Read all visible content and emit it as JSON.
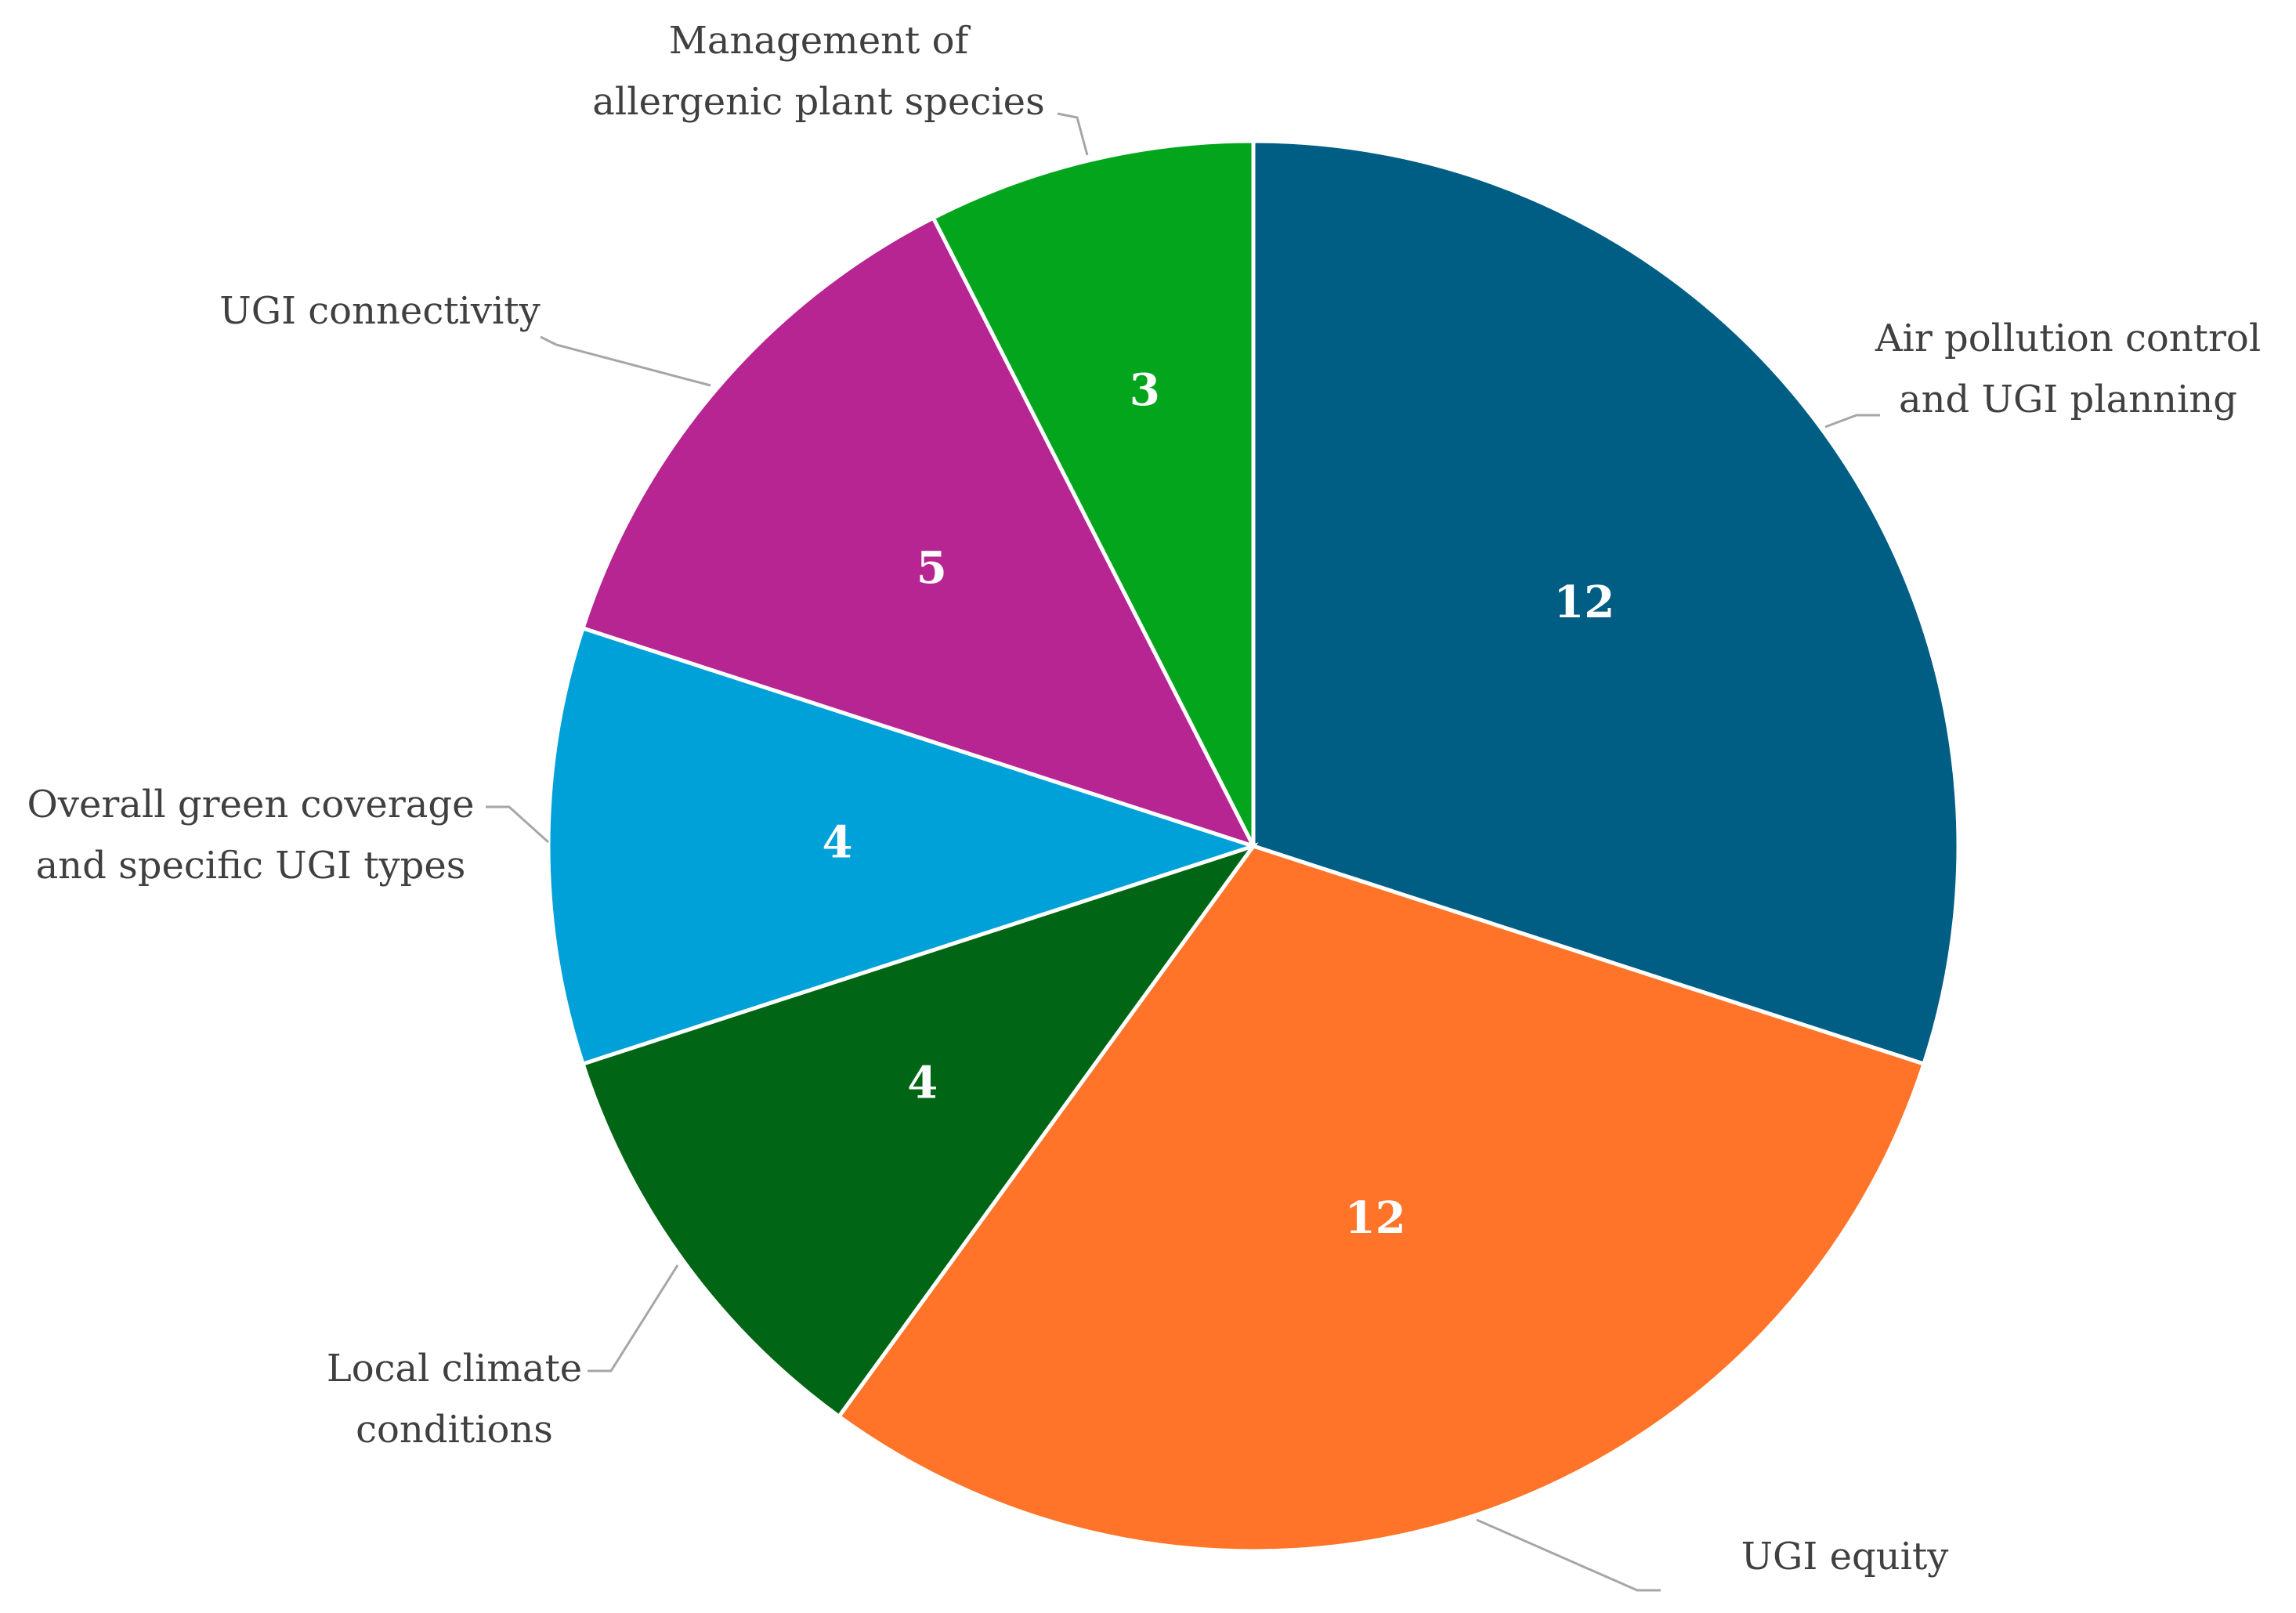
{
  "chart_data": {
    "type": "pie",
    "title": "",
    "slices": [
      {
        "label": "Air pollution control and UGI planning",
        "label_lines": [
          "Air pollution control",
          "and UGI planning"
        ],
        "value": 12,
        "color": "#005E85"
      },
      {
        "label": "UGI equity",
        "label_lines": [
          "UGI equity"
        ],
        "value": 12,
        "color": "#FF7428"
      },
      {
        "label": "Local climate conditions",
        "label_lines": [
          "Local climate",
          "conditions"
        ],
        "value": 4,
        "color": "#006616"
      },
      {
        "label": "Overall green coverage and specific UGI types",
        "label_lines": [
          "Overall green coverage",
          "and specific UGI types"
        ],
        "value": 4,
        "color": "#00A0D8"
      },
      {
        "label": "UGI connectivity",
        "label_lines": [
          "UGI connectivity"
        ],
        "value": 5,
        "color": "#B72593"
      },
      {
        "label": "Management of allergenic plant species",
        "label_lines": [
          "Management of",
          "allergenic plant species"
        ],
        "value": 3,
        "color": "#02A51C"
      }
    ],
    "start_angle": "12 o'clock",
    "direction": "clockwise",
    "legend": "none",
    "data_labels": "inside",
    "category_labels": "outside with leader lines"
  }
}
